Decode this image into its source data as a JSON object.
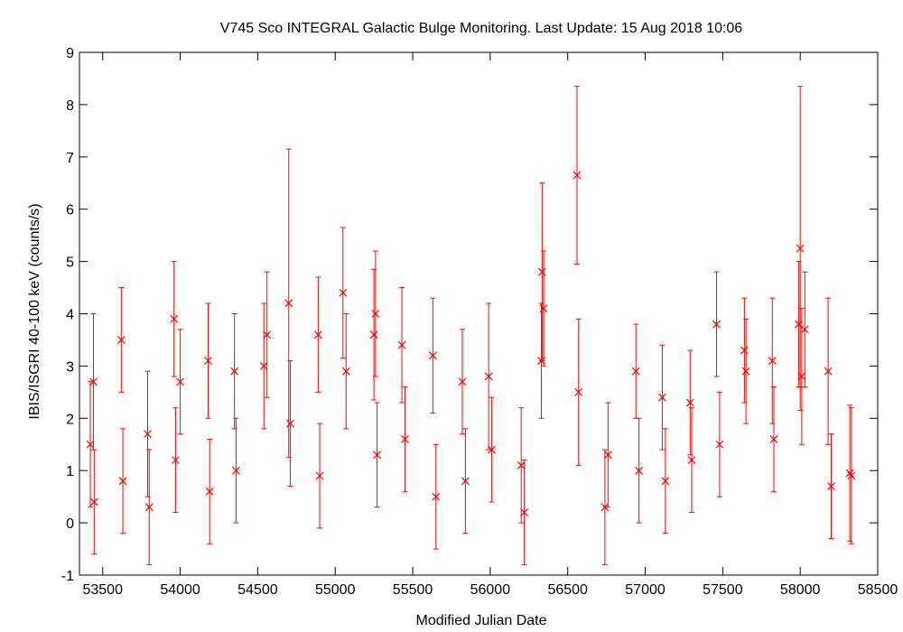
{
  "chart_data": {
    "type": "scatter",
    "title": "V745 Sco   INTEGRAL Galactic Bulge Monitoring.  Last Update: 15 Aug 2018 10:06",
    "xlabel": "Modified Julian Date",
    "ylabel": "IBIS/ISGRI 40-100 keV (counts/s)",
    "xlim": [
      53350,
      58500
    ],
    "ylim": [
      -1,
      9
    ],
    "xticks": [
      53500,
      54000,
      54500,
      55000,
      55500,
      56000,
      56500,
      57000,
      57500,
      58000,
      58500
    ],
    "yticks": [
      -1,
      0,
      1,
      2,
      3,
      4,
      5,
      6,
      7,
      8,
      9
    ],
    "grid": false,
    "legend": "none",
    "marker": "x",
    "error_bars": true,
    "color": "#ff0000",
    "series": [
      {
        "x": [
          53420,
          53440,
          53445,
          53620,
          53630,
          53790,
          53800,
          53960,
          53970,
          54000,
          54180,
          54190,
          54350,
          54360,
          54540,
          54560,
          54700,
          54710,
          54890,
          54900,
          55050,
          55070,
          55250,
          55260,
          55270,
          55430,
          55450,
          55630,
          55650,
          55820,
          55840,
          55990,
          56010,
          56200,
          56220,
          56330,
          56335,
          56345,
          56560,
          56570,
          56740,
          56760,
          56940,
          56960,
          57110,
          57130,
          57290,
          57300,
          57460,
          57480,
          57640,
          57650,
          57820,
          57830,
          57990,
          58000,
          58010,
          58030,
          58180,
          58200,
          58320,
          58330
        ],
        "y": [
          1.5,
          2.7,
          0.4,
          3.5,
          0.8,
          1.7,
          0.3,
          3.9,
          1.2,
          2.7,
          3.1,
          0.6,
          2.9,
          1.0,
          3.0,
          3.6,
          4.2,
          1.9,
          3.6,
          0.9,
          4.4,
          2.9,
          3.6,
          4.0,
          1.3,
          3.4,
          1.6,
          3.2,
          0.5,
          2.7,
          0.8,
          2.8,
          1.4,
          1.1,
          0.2,
          3.1,
          4.8,
          4.1,
          6.65,
          2.5,
          0.3,
          1.3,
          2.9,
          1.0,
          2.4,
          0.8,
          2.3,
          1.2,
          3.8,
          1.5,
          3.3,
          2.9,
          3.1,
          1.6,
          3.8,
          5.25,
          2.8,
          3.7,
          2.9,
          0.7,
          0.95,
          0.9
        ],
        "err": [
          1.2,
          1.3,
          1.0,
          1.0,
          1.0,
          1.2,
          1.1,
          1.1,
          1.0,
          1.0,
          1.1,
          1.0,
          1.1,
          1.0,
          1.2,
          1.2,
          2.95,
          1.2,
          1.1,
          1.0,
          1.25,
          1.1,
          1.25,
          1.2,
          1.0,
          1.1,
          1.0,
          1.1,
          1.0,
          1.0,
          1.0,
          1.4,
          1.0,
          1.1,
          1.0,
          1.1,
          1.7,
          1.1,
          1.7,
          1.4,
          1.1,
          1.0,
          0.9,
          1.0,
          1.0,
          1.0,
          1.0,
          1.0,
          1.0,
          1.0,
          1.0,
          1.0,
          1.2,
          1.0,
          1.2,
          3.1,
          1.3,
          1.1,
          1.4,
          1.0,
          1.3,
          1.3
        ]
      }
    ]
  }
}
